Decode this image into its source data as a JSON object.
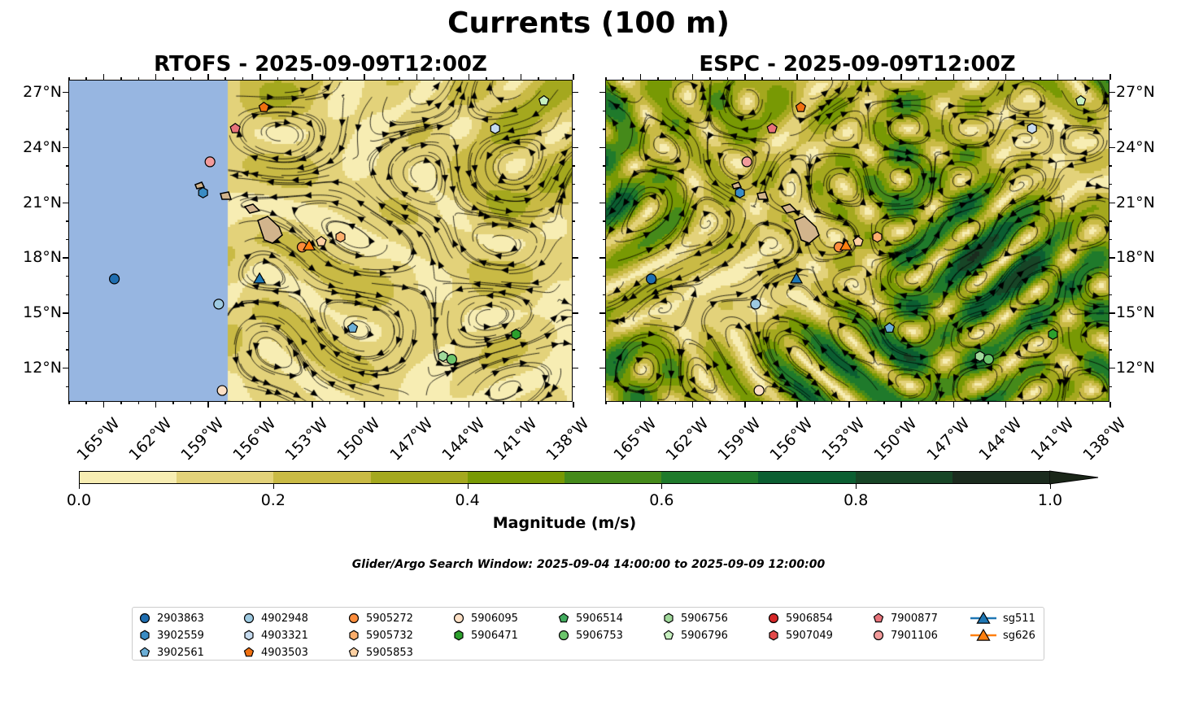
{
  "title": "Currents (100 m)",
  "panels": [
    {
      "key": "rtofs",
      "title": "RTOFS - 2025-09-09T12:00Z"
    },
    {
      "key": "espc",
      "title": "ESPC - 2025-09-09T12:00Z"
    }
  ],
  "lat_ticks": [
    {
      "value": 27,
      "label": "27°N"
    },
    {
      "value": 24,
      "label": "24°N"
    },
    {
      "value": 21,
      "label": "21°N"
    },
    {
      "value": 18,
      "label": "18°N"
    },
    {
      "value": 15,
      "label": "15°N"
    },
    {
      "value": 12,
      "label": "12°N"
    }
  ],
  "lon_ticks": [
    {
      "value": 165,
      "label": "165°W"
    },
    {
      "value": 162,
      "label": "162°W"
    },
    {
      "value": 159,
      "label": "159°W"
    },
    {
      "value": 156,
      "label": "156°W"
    },
    {
      "value": 153,
      "label": "153°W"
    },
    {
      "value": 150,
      "label": "150°W"
    },
    {
      "value": 147,
      "label": "147°W"
    },
    {
      "value": 144,
      "label": "144°W"
    },
    {
      "value": 141,
      "label": "141°W"
    },
    {
      "value": 138,
      "label": "138°W"
    }
  ],
  "extent": {
    "lon_west": 167.0,
    "lon_east": 138.0,
    "lat_south": 10.14,
    "lat_north": 27.66
  },
  "colorbar": {
    "label": "Magnitude (m/s)",
    "ticks": [
      {
        "value": 0,
        "label": "0.0"
      },
      {
        "value": 0.2,
        "label": "0.2"
      },
      {
        "value": 0.4,
        "label": "0.4"
      },
      {
        "value": 0.6,
        "label": "0.6"
      },
      {
        "value": 0.8,
        "label": "0.8"
      },
      {
        "value": 1.0,
        "label": "1.0"
      }
    ],
    "colors": [
      "#f7edb3",
      "#e3d27a",
      "#c9ba45",
      "#a4a81e",
      "#789904",
      "#458a1a",
      "#1f7a2b",
      "#0b5e31",
      "#174526",
      "#1b2b1e"
    ],
    "extend_color": "#1a2618",
    "range": [
      0,
      1
    ]
  },
  "masked_color": "#97b6e1",
  "search_window": "Glider/Argo Search Window: 2025-09-04 14:00:00 to 2025-09-09 12:00:00",
  "legend": [
    {
      "id": "2903863",
      "shape": "circle",
      "color": "#1f6eb0"
    },
    {
      "id": "3902559",
      "shape": "hexagon",
      "color": "#3a8cc4"
    },
    {
      "id": "3902561",
      "shape": "pentagon",
      "color": "#6baed6"
    },
    {
      "id": "4902948",
      "shape": "circle",
      "color": "#9ecae1"
    },
    {
      "id": "4903321",
      "shape": "hexagon",
      "color": "#c6dbef"
    },
    {
      "id": "4903503",
      "shape": "pentagon",
      "color": "#f07010"
    },
    {
      "id": "5905272",
      "shape": "circle",
      "color": "#fd8d3c"
    },
    {
      "id": "5905732",
      "shape": "hexagon",
      "color": "#fdae6b"
    },
    {
      "id": "5905853",
      "shape": "pentagon",
      "color": "#fdd0a2"
    },
    {
      "id": "5906095",
      "shape": "circle",
      "color": "#fde0c5"
    },
    {
      "id": "5906471",
      "shape": "hexagon",
      "color": "#2ca02c"
    },
    {
      "id": "5906514",
      "shape": "pentagon",
      "color": "#41ab5d"
    },
    {
      "id": "5906753",
      "shape": "circle",
      "color": "#6cc56c"
    },
    {
      "id": "5906756",
      "shape": "hexagon",
      "color": "#a1d99b"
    },
    {
      "id": "5906796",
      "shape": "pentagon",
      "color": "#c7f0c0"
    },
    {
      "id": "5906854",
      "shape": "circle",
      "color": "#d62728"
    },
    {
      "id": "5907049",
      "shape": "hexagon",
      "color": "#e34a4a"
    },
    {
      "id": "7900877",
      "shape": "pentagon",
      "color": "#e8737a"
    },
    {
      "id": "7901106",
      "shape": "circle",
      "color": "#f29b9b"
    },
    {
      "id": "sg511",
      "shape": "triangle",
      "color": "#1f77b4",
      "line": true
    },
    {
      "id": "sg626",
      "shape": "triangle",
      "color": "#ff7f0e",
      "line": true
    }
  ],
  "markers": [
    {
      "id": "2903863",
      "lon": 164.4,
      "lat": 16.87
    },
    {
      "id": "3902559",
      "lon": 159.3,
      "lat": 21.56
    },
    {
      "id": "7901106",
      "lon": 158.9,
      "lat": 23.24
    },
    {
      "id": "4902948",
      "lon": 158.4,
      "lat": 15.5
    },
    {
      "id": "5906095",
      "lon": 158.2,
      "lat": 10.8
    },
    {
      "id": "7900877",
      "lon": 157.45,
      "lat": 25.05
    },
    {
      "id": "4903503",
      "lon": 155.8,
      "lat": 26.2
    },
    {
      "id": "sg511",
      "lon": 156.05,
      "lat": 16.9
    },
    {
      "id": "5905272",
      "lon": 153.6,
      "lat": 18.6
    },
    {
      "id": "sg626",
      "lon": 153.2,
      "lat": 18.7
    },
    {
      "id": "5905853",
      "lon": 152.5,
      "lat": 18.9
    },
    {
      "id": "5905732",
      "lon": 151.4,
      "lat": 19.15
    },
    {
      "id": "4903321",
      "lon": 142.5,
      "lat": 25.05
    },
    {
      "id": "5906796",
      "lon": 139.7,
      "lat": 26.56
    },
    {
      "id": "3902561",
      "lon": 150.7,
      "lat": 14.2
    },
    {
      "id": "5906471",
      "lon": 141.3,
      "lat": 13.86
    },
    {
      "id": "5906756",
      "lon": 145.5,
      "lat": 12.66
    },
    {
      "id": "5906753",
      "lon": 145.0,
      "lat": 12.5
    }
  ]
}
